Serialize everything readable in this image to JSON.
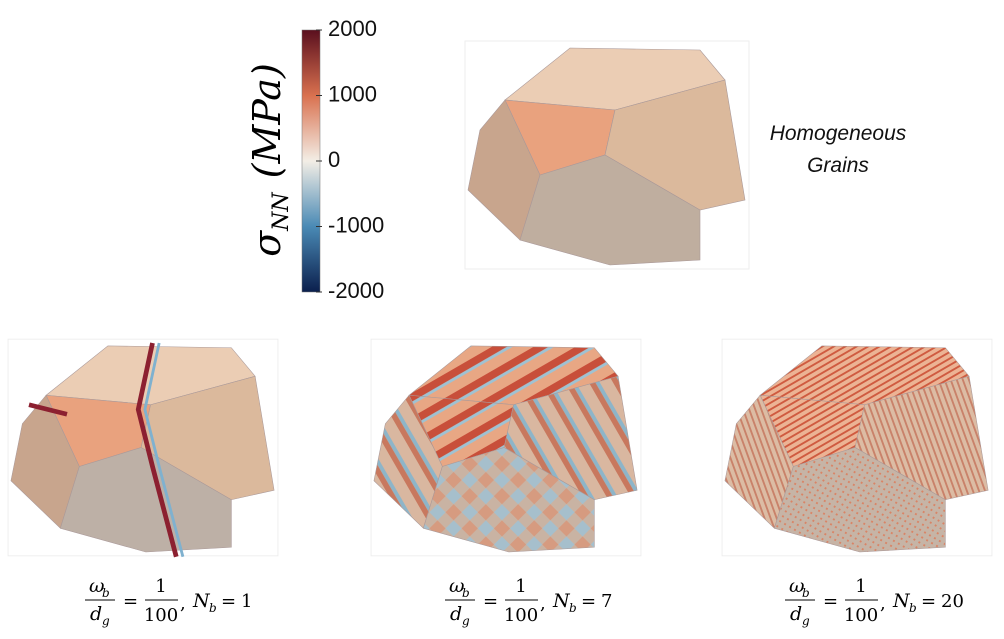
{
  "colorbar": {
    "label_symbol": "σ",
    "label_sub": "NN",
    "label_unit": "(MPa)",
    "lim": [
      -2000,
      2000
    ],
    "ticks": [
      2000,
      1000,
      0,
      -1000,
      -2000
    ],
    "colors": [
      "#0b1f4d",
      "#4a8ab5",
      "#f3eee6",
      "#d9714f",
      "#5a0f1e"
    ]
  },
  "annotation": [
    "Homogeneous",
    "Grains"
  ],
  "caption": {
    "omega": "ω",
    "omega_sub": "b",
    "d": "d",
    "d_sub": "g",
    "eq": "=",
    "sep": ",",
    "N": "N",
    "N_sub": "b"
  },
  "panels": [
    {
      "num": 1,
      "den": 100,
      "Nb": 1
    },
    {
      "num": 1,
      "den": 100,
      "Nb": 7
    },
    {
      "num": 1,
      "den": 100,
      "Nb": 20
    }
  ]
}
